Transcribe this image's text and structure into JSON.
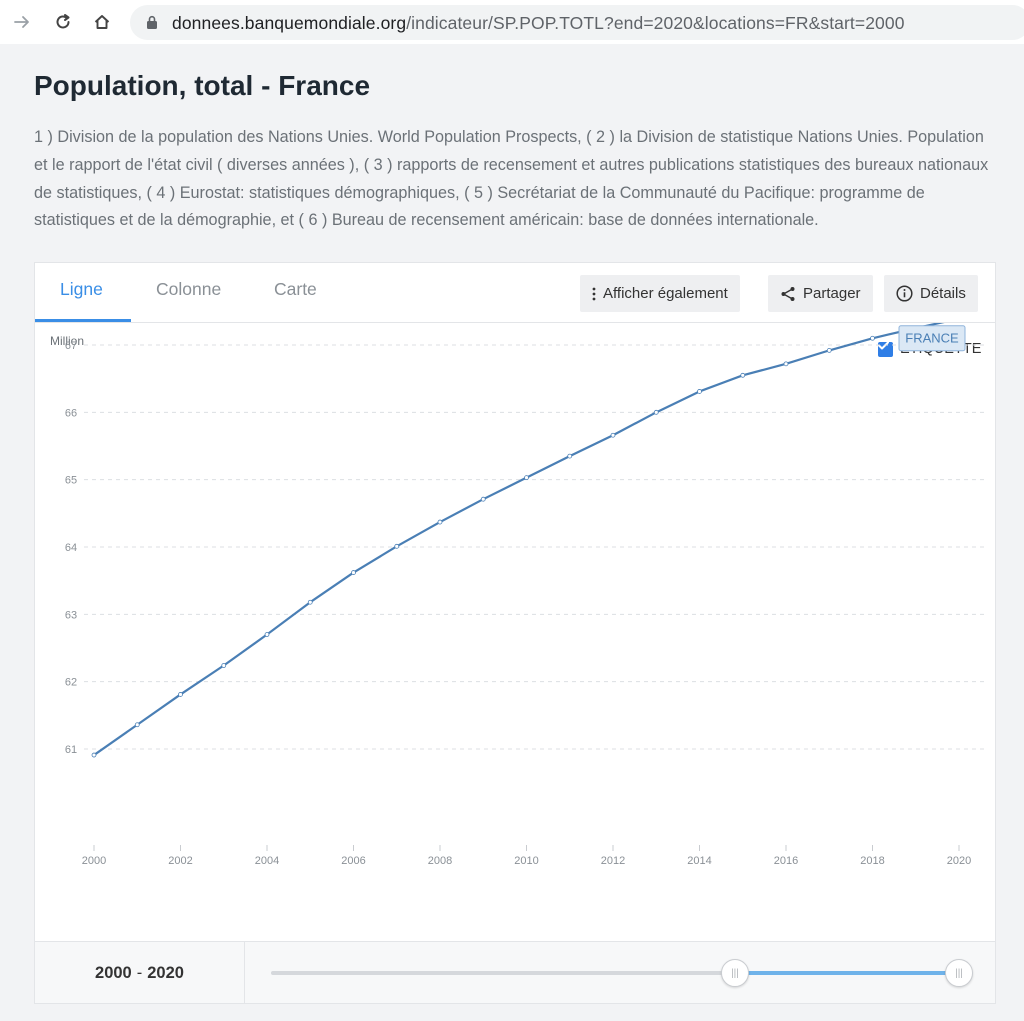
{
  "browser": {
    "url_domain": "donnees.banquemondiale.org",
    "url_path": "/indicateur/SP.POP.TOTL?end=2020&locations=FR&start=2000"
  },
  "page": {
    "title": "Population, total - France",
    "description": "1 ) Division de la population des Nations Unies. World Population Prospects, ( 2 ) la Division de statistique Nations Unies. Population et le rapport de l'état civil ( diverses années ), ( 3 ) rapports de recensement et autres publications statistiques des bureaux nationaux de statistiques, ( 4 ) Eurostat: statistiques démographiques, ( 5 ) Secrétariat de la Communauté du Pacifique: programme de statistiques et de la démographie, et ( 6 ) Bureau de recensement américain: base de données internationale."
  },
  "tabs": [
    {
      "label": "Ligne",
      "active": true
    },
    {
      "label": "Colonne",
      "active": false
    },
    {
      "label": "Carte",
      "active": false
    }
  ],
  "toolbar": {
    "also_show_label": "Afficher également",
    "share_label": "Partager",
    "details_label": "Détails"
  },
  "chart": {
    "unit_label": "Million",
    "legend_toggle_label": "ÉTIQUETTE",
    "legend_checked": true,
    "series_label": "FRANCE"
  },
  "range": {
    "start": "2000",
    "separator": "-",
    "end": "2020",
    "slider_start_fraction": 0.6744,
    "slider_end_fraction": 1.0
  },
  "colors": {
    "accent": "#3a8ee6",
    "line": "#4a7fb5",
    "label_bg": "#dbe8f5"
  },
  "chart_data": {
    "type": "line",
    "x": [
      2000,
      2001,
      2002,
      2003,
      2004,
      2005,
      2006,
      2007,
      2008,
      2009,
      2010,
      2011,
      2012,
      2013,
      2014,
      2015,
      2016,
      2017,
      2018,
      2019,
      2020
    ],
    "series": [
      {
        "name": "FRANCE",
        "values": [
          60.91,
          61.36,
          61.81,
          62.24,
          62.7,
          63.18,
          63.62,
          64.01,
          64.37,
          64.71,
          65.03,
          65.35,
          65.66,
          66.0,
          66.31,
          66.55,
          66.72,
          66.92,
          67.1,
          67.25,
          67.39
        ]
      }
    ],
    "xticks": [
      "2000",
      "2002",
      "2004",
      "2006",
      "2008",
      "2010",
      "2012",
      "2014",
      "2016",
      "2018",
      "2020"
    ],
    "yticks": [
      "61",
      "62",
      "63",
      "64",
      "65",
      "66",
      "67"
    ],
    "ylabel": "Million",
    "ylim": [
      60.75,
      67.5
    ],
    "xlim": [
      2000,
      2020
    ],
    "grid": true,
    "legend": "inline-label"
  }
}
